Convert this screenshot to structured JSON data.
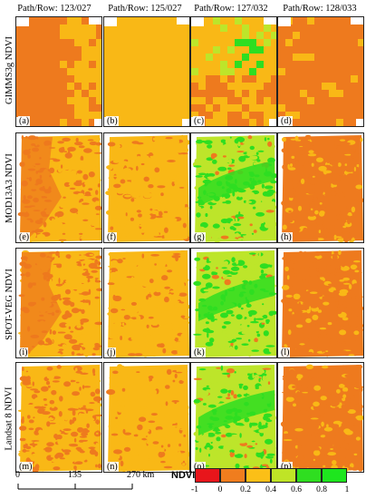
{
  "column_headers": [
    "Path/Row: 123/027",
    "Path/Row: 125/027",
    "Path/Row: 127/032",
    "Path/Row: 128/033"
  ],
  "row_labels": [
    "GIMMS3g NDVI",
    "MOD13A3 NDVI",
    "SPOT-VEG NDVI",
    "Landsat 8 NDVI"
  ],
  "panel_letters": [
    "(a)",
    "(b)",
    "(c)",
    "(d)",
    "(e)",
    "(f)",
    "(g)",
    "(h)",
    "(i)",
    "(j)",
    "(k)",
    "(l)",
    "(m)",
    "(n)",
    "(o)",
    "(p)"
  ],
  "scale_bar": {
    "labels": [
      "0",
      "135",
      "270 km"
    ]
  },
  "legend": {
    "title": "NDVI",
    "ticks": [
      "-1",
      "0",
      "0.2",
      "0.4",
      "0.6",
      "0.8",
      "1"
    ],
    "colors": [
      "#e8151b",
      "#f07d1e",
      "#fbbf17",
      "#bfe426",
      "#2fde20",
      "#1ee61e"
    ]
  },
  "colors": {
    "red": "#e31a1c",
    "orange": "#ee7a1e",
    "yellow_orange": "#f9b816",
    "yellow_green": "#bde52a",
    "green": "#2ede21"
  }
}
